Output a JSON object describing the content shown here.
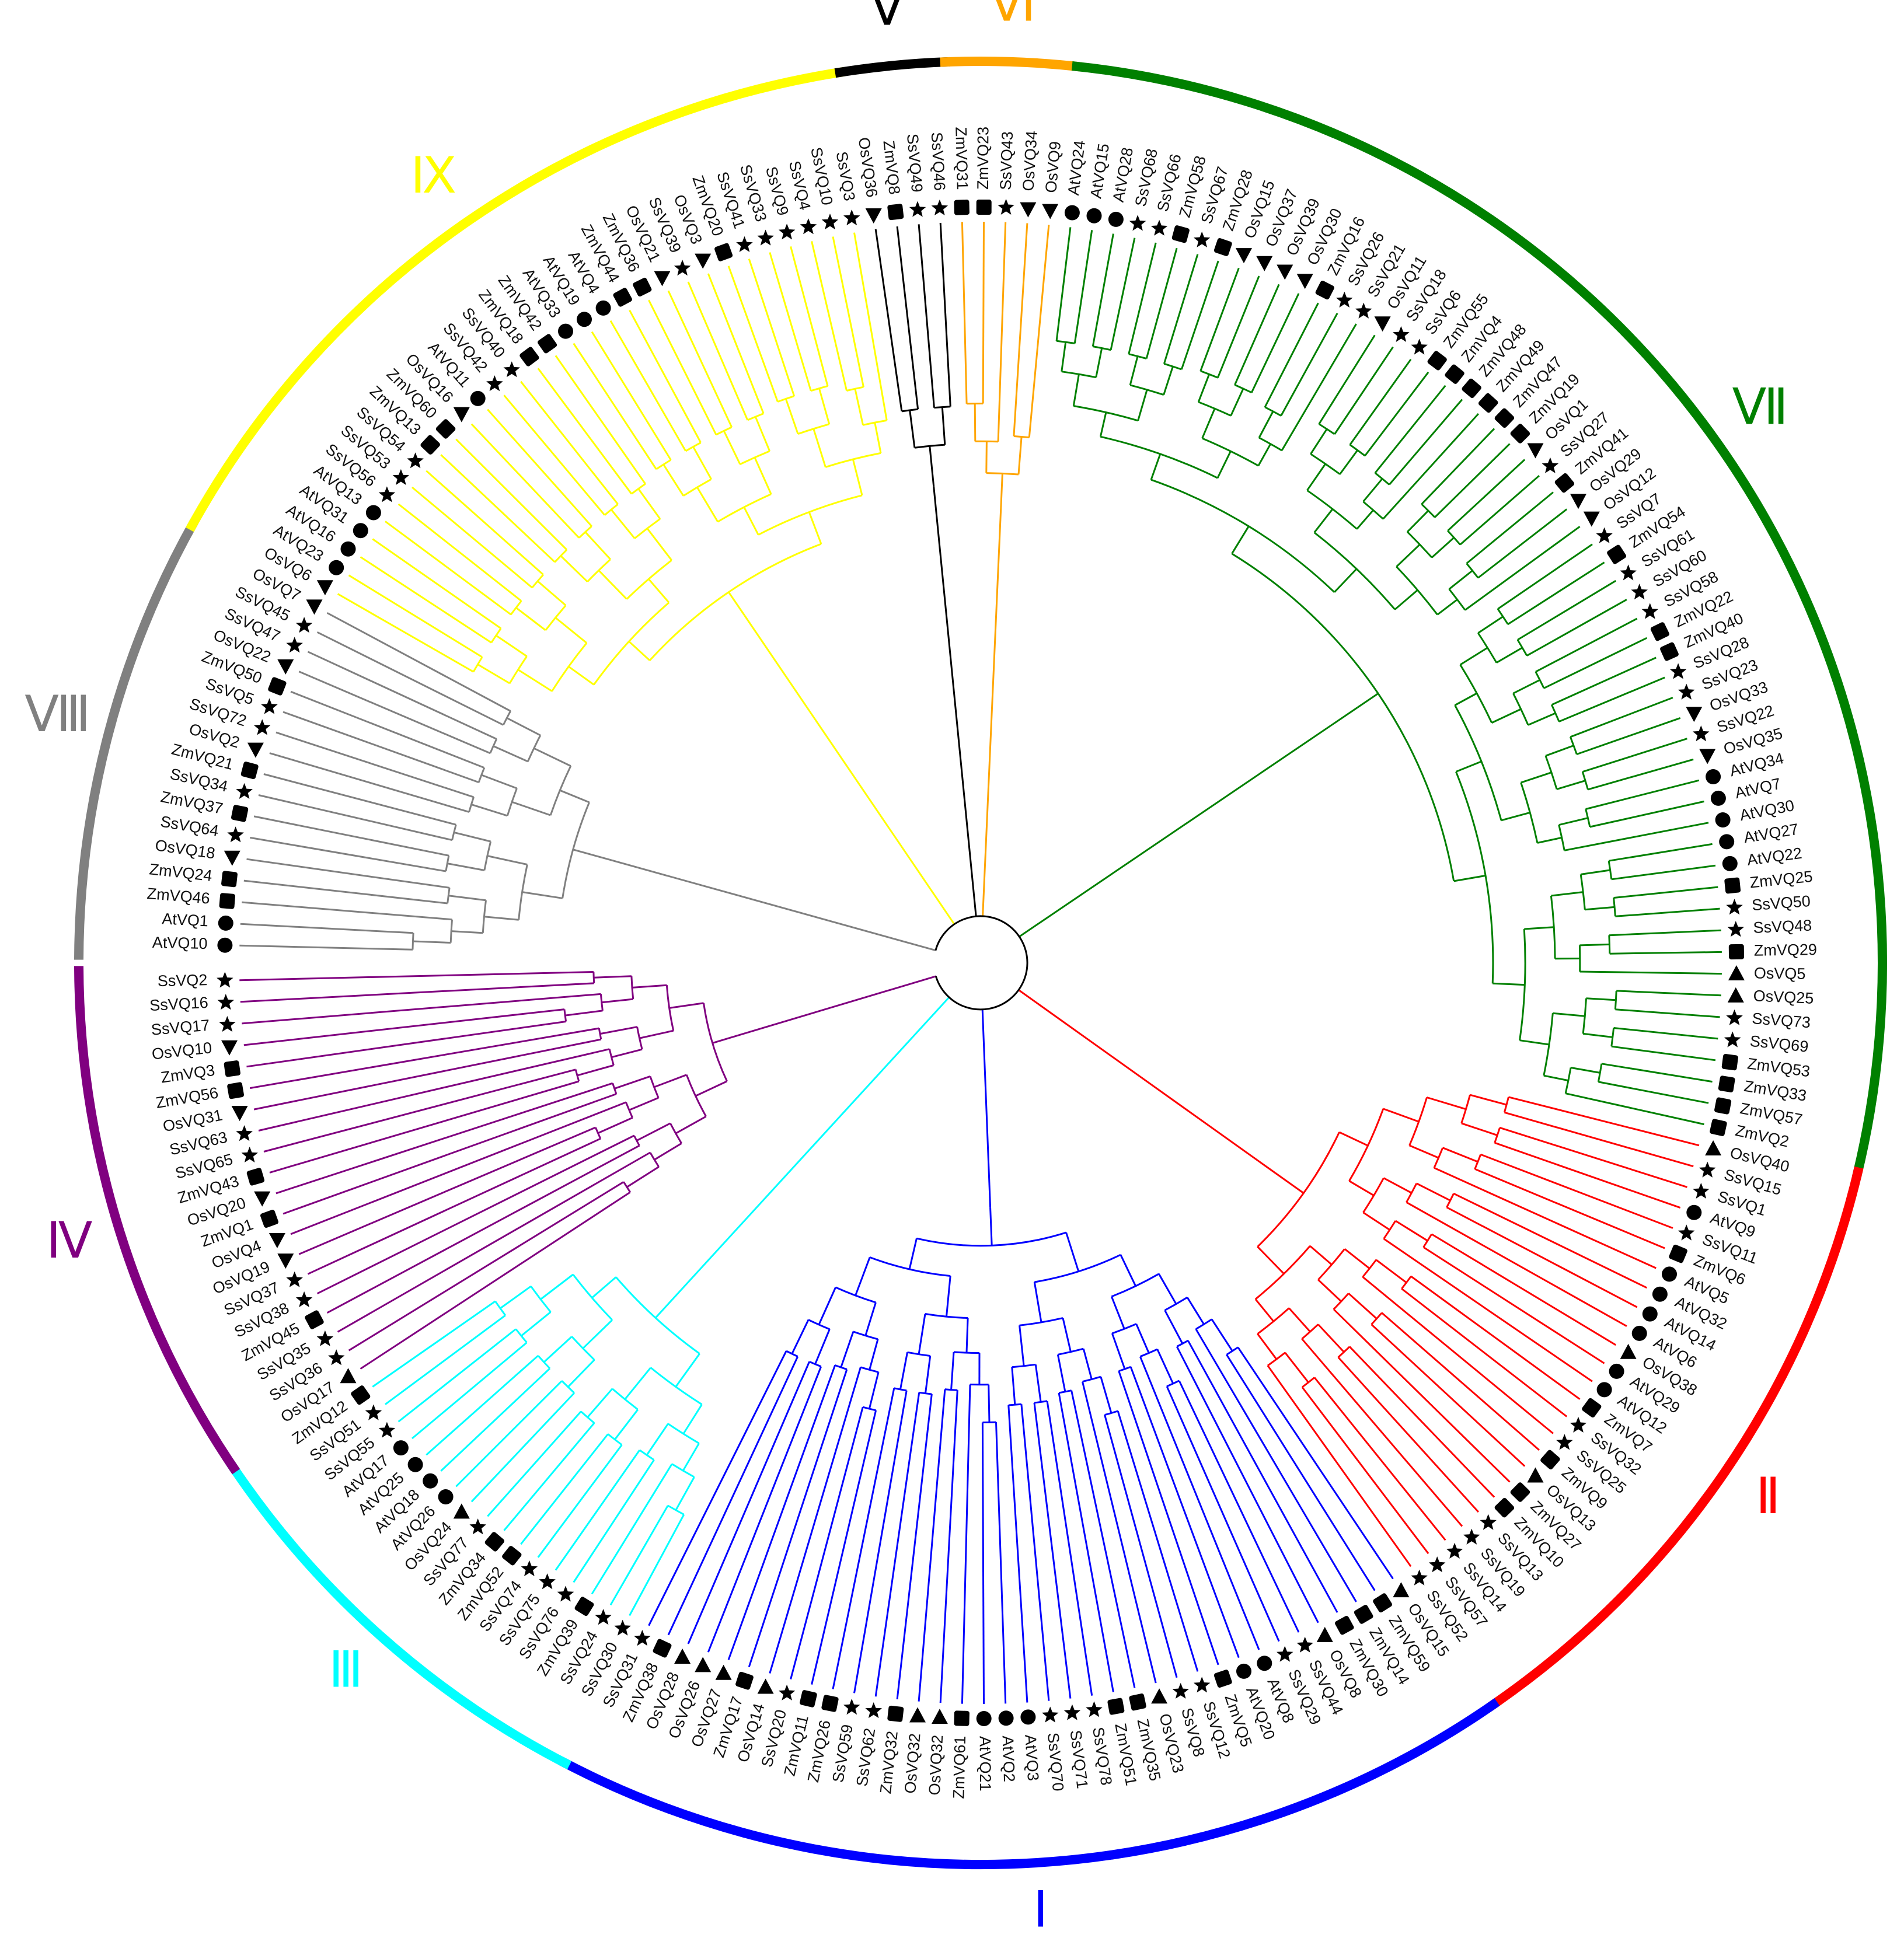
{
  "tree": {
    "leaves": [
      {
        "name": "AtVQ10",
        "shape": "circle"
      },
      {
        "name": "AtVQ1",
        "shape": "circle"
      },
      {
        "name": "ZmVQ46",
        "shape": "square"
      },
      {
        "name": "ZmVQ24",
        "shape": "square"
      },
      {
        "name": "OsVQ18",
        "shape": "triangle-down"
      },
      {
        "name": "SsVQ64",
        "shape": "star"
      },
      {
        "name": "ZmVQ37",
        "shape": "square"
      },
      {
        "name": "SsVQ34",
        "shape": "star"
      },
      {
        "name": "ZmVQ21",
        "shape": "square"
      },
      {
        "name": "OsVQ2",
        "shape": "triangle-down"
      },
      {
        "name": "SsVQ72",
        "shape": "star"
      },
      {
        "name": "SsVQ5",
        "shape": "star"
      },
      {
        "name": "ZmVQ50",
        "shape": "square"
      },
      {
        "name": "OsVQ22",
        "shape": "triangle-down"
      },
      {
        "name": "SsVQ47",
        "shape": "star"
      },
      {
        "name": "SsVQ45",
        "shape": "star"
      },
      {
        "name": "OsVQ7",
        "shape": "triangle-down"
      },
      {
        "name": "OsVQ6",
        "shape": "triangle-down"
      },
      {
        "name": "AtVQ23",
        "shape": "circle"
      },
      {
        "name": "AtVQ16",
        "shape": "circle"
      },
      {
        "name": "AtVQ31",
        "shape": "circle"
      },
      {
        "name": "AtVQ13",
        "shape": "circle"
      },
      {
        "name": "SsVQ56",
        "shape": "star"
      },
      {
        "name": "SsVQ53",
        "shape": "star"
      },
      {
        "name": "SsVQ54",
        "shape": "star"
      },
      {
        "name": "ZmVQ13",
        "shape": "square"
      },
      {
        "name": "ZmVQ60",
        "shape": "square"
      },
      {
        "name": "OsVQ16",
        "shape": "triangle-down"
      },
      {
        "name": "AtVQ11",
        "shape": "circle"
      },
      {
        "name": "SsVQ42",
        "shape": "star"
      },
      {
        "name": "SsVQ40",
        "shape": "star"
      },
      {
        "name": "ZmVQ18",
        "shape": "square"
      },
      {
        "name": "ZmVQ42",
        "shape": "square"
      },
      {
        "name": "AtVQ33",
        "shape": "circle"
      },
      {
        "name": "AtVQ19",
        "shape": "circle"
      },
      {
        "name": "AtVQ4",
        "shape": "circle"
      },
      {
        "name": "ZmVQ44",
        "shape": "square"
      },
      {
        "name": "ZmVQ36",
        "shape": "square"
      },
      {
        "name": "OsVQ21",
        "shape": "triangle-down"
      },
      {
        "name": "SsVQ39",
        "shape": "star"
      },
      {
        "name": "OsVQ3",
        "shape": "triangle-down"
      },
      {
        "name": "ZmVQ20",
        "shape": "square"
      },
      {
        "name": "SsVQ41",
        "shape": "star"
      },
      {
        "name": "SsVQ33",
        "shape": "star"
      },
      {
        "name": "SsVQ9",
        "shape": "star"
      },
      {
        "name": "SsVQ4",
        "shape": "star"
      },
      {
        "name": "SsVQ10",
        "shape": "star"
      },
      {
        "name": "SsVQ3",
        "shape": "star"
      },
      {
        "name": "OsVQ36",
        "shape": "triangle-down"
      },
      {
        "name": "ZmVQ8",
        "shape": "square"
      },
      {
        "name": "SsVQ49",
        "shape": "star"
      },
      {
        "name": "SsVQ46",
        "shape": "star"
      },
      {
        "name": "ZmVQ31",
        "shape": "square"
      },
      {
        "name": "ZmVQ23",
        "shape": "square"
      },
      {
        "name": "SsVQ43",
        "shape": "star"
      },
      {
        "name": "OsVQ34",
        "shape": "triangle-down"
      },
      {
        "name": "OsVQ9",
        "shape": "triangle-down"
      },
      {
        "name": "AtVQ24",
        "shape": "circle"
      },
      {
        "name": "AtVQ15",
        "shape": "circle"
      },
      {
        "name": "AtVQ28",
        "shape": "circle"
      },
      {
        "name": "SsVQ68",
        "shape": "star"
      },
      {
        "name": "SsVQ66",
        "shape": "star"
      },
      {
        "name": "ZmVQ58",
        "shape": "square"
      },
      {
        "name": "SsVQ67",
        "shape": "star"
      },
      {
        "name": "ZmVQ28",
        "shape": "square"
      },
      {
        "name": "OsVQ15",
        "shape": "triangle-down"
      },
      {
        "name": "OsVQ37",
        "shape": "triangle-down"
      },
      {
        "name": "OsVQ39",
        "shape": "triangle-down"
      },
      {
        "name": "OsVQ30",
        "shape": "triangle-down"
      },
      {
        "name": "ZmVQ16",
        "shape": "square"
      },
      {
        "name": "SsVQ26",
        "shape": "star"
      },
      {
        "name": "SsVQ21",
        "shape": "star"
      },
      {
        "name": "OsVQ11",
        "shape": "triangle-down"
      },
      {
        "name": "SsVQ18",
        "shape": "star"
      },
      {
        "name": "SsVQ6",
        "shape": "star"
      },
      {
        "name": "ZmVQ55",
        "shape": "square"
      },
      {
        "name": "ZmVQ4",
        "shape": "square"
      },
      {
        "name": "ZmVQ48",
        "shape": "square"
      },
      {
        "name": "ZmVQ49",
        "shape": "square"
      },
      {
        "name": "ZmVQ47",
        "shape": "square"
      },
      {
        "name": "ZmVQ19",
        "shape": "square"
      },
      {
        "name": "OsVQ1",
        "shape": "triangle-down"
      },
      {
        "name": "SsVQ27",
        "shape": "star"
      },
      {
        "name": "ZmVQ41",
        "shape": "square"
      },
      {
        "name": "OsVQ29",
        "shape": "triangle-down"
      },
      {
        "name": "OsVQ12",
        "shape": "triangle-down"
      },
      {
        "name": "SsVQ7",
        "shape": "star"
      },
      {
        "name": "ZmVQ54",
        "shape": "square"
      },
      {
        "name": "SsVQ61",
        "shape": "star"
      },
      {
        "name": "SsVQ60",
        "shape": "star"
      },
      {
        "name": "SsVQ58",
        "shape": "star"
      },
      {
        "name": "ZmVQ22",
        "shape": "square"
      },
      {
        "name": "ZmVQ40",
        "shape": "square"
      },
      {
        "name": "SsVQ28",
        "shape": "star"
      },
      {
        "name": "SsVQ23",
        "shape": "star"
      },
      {
        "name": "OsVQ33",
        "shape": "triangle-down"
      },
      {
        "name": "SsVQ22",
        "shape": "star"
      },
      {
        "name": "OsVQ35",
        "shape": "triangle-down"
      },
      {
        "name": "AtVQ34",
        "shape": "circle"
      },
      {
        "name": "AtVQ7",
        "shape": "circle"
      },
      {
        "name": "AtVQ30",
        "shape": "circle"
      },
      {
        "name": "AtVQ27",
        "shape": "circle"
      },
      {
        "name": "AtVQ22",
        "shape": "circle"
      },
      {
        "name": "ZmVQ25",
        "shape": "square"
      },
      {
        "name": "SsVQ50",
        "shape": "star"
      },
      {
        "name": "SsVQ48",
        "shape": "star"
      },
      {
        "name": "ZmVQ29",
        "shape": "square"
      },
      {
        "name": "OsVQ5",
        "shape": "triangle-up"
      },
      {
        "name": "OsVQ25",
        "shape": "triangle-up"
      },
      {
        "name": "SsVQ73",
        "shape": "star"
      },
      {
        "name": "SsVQ69",
        "shape": "star"
      },
      {
        "name": "ZmVQ53",
        "shape": "square"
      },
      {
        "name": "ZmVQ33",
        "shape": "square"
      },
      {
        "name": "ZmVQ57",
        "shape": "square"
      },
      {
        "name": "ZmVQ2",
        "shape": "square"
      },
      {
        "name": "OsVQ40",
        "shape": "triangle-up"
      },
      {
        "name": "SsVQ15",
        "shape": "star"
      },
      {
        "name": "SsVQ1",
        "shape": "star"
      },
      {
        "name": "AtVQ9",
        "shape": "circle"
      },
      {
        "name": "SsVQ11",
        "shape": "star"
      },
      {
        "name": "ZmVQ6",
        "shape": "square"
      },
      {
        "name": "AtVQ5",
        "shape": "circle"
      },
      {
        "name": "AtVQ32",
        "shape": "circle"
      },
      {
        "name": "AtVQ14",
        "shape": "circle"
      },
      {
        "name": "AtVQ6",
        "shape": "circle"
      },
      {
        "name": "OsVQ38",
        "shape": "triangle-up"
      },
      {
        "name": "AtVQ29",
        "shape": "circle"
      },
      {
        "name": "AtVQ12",
        "shape": "circle"
      },
      {
        "name": "ZmVQ7",
        "shape": "square"
      },
      {
        "name": "SsVQ32",
        "shape": "star"
      },
      {
        "name": "SsVQ25",
        "shape": "star"
      },
      {
        "name": "ZmVQ9",
        "shape": "square"
      },
      {
        "name": "OsVQ13",
        "shape": "triangle-up"
      },
      {
        "name": "ZmVQ27",
        "shape": "square"
      },
      {
        "name": "ZmVQ10",
        "shape": "square"
      },
      {
        "name": "SsVQ13",
        "shape": "star"
      },
      {
        "name": "SsVQ19",
        "shape": "star"
      },
      {
        "name": "SsVQ14",
        "shape": "star"
      },
      {
        "name": "SsVQ57",
        "shape": "star"
      },
      {
        "name": "SsVQ52",
        "shape": "star"
      },
      {
        "name": "OsVQ15",
        "shape": "triangle-up"
      },
      {
        "name": "ZmVQ59",
        "shape": "square"
      },
      {
        "name": "ZmVQ14",
        "shape": "square"
      },
      {
        "name": "ZmVQ30",
        "shape": "square"
      },
      {
        "name": "OsVQ8",
        "shape": "triangle-up"
      },
      {
        "name": "SsVQ44",
        "shape": "star"
      },
      {
        "name": "SsVQ29",
        "shape": "star"
      },
      {
        "name": "AtVQ8",
        "shape": "circle"
      },
      {
        "name": "AtVQ20",
        "shape": "circle"
      },
      {
        "name": "ZmVQ5",
        "shape": "square"
      },
      {
        "name": "SsVQ12",
        "shape": "star"
      },
      {
        "name": "SsVQ8",
        "shape": "star"
      },
      {
        "name": "OsVQ23",
        "shape": "triangle-up"
      },
      {
        "name": "ZmVQ35",
        "shape": "square"
      },
      {
        "name": "ZmVQ51",
        "shape": "square"
      },
      {
        "name": "SsVQ78",
        "shape": "star"
      },
      {
        "name": "SsVQ71",
        "shape": "star"
      },
      {
        "name": "SsVQ70",
        "shape": "star"
      },
      {
        "name": "AtVQ3",
        "shape": "circle"
      },
      {
        "name": "AtVQ2",
        "shape": "circle"
      },
      {
        "name": "AtVQ21",
        "shape": "circle"
      },
      {
        "name": "ZmVQ61",
        "shape": "square"
      },
      {
        "name": "OsVQ32",
        "shape": "triangle-up"
      },
      {
        "name": "OsVQ32",
        "shape": "triangle-up"
      },
      {
        "name": "ZmVQ32",
        "shape": "square"
      },
      {
        "name": "SsVQ62",
        "shape": "star"
      },
      {
        "name": "SsVQ59",
        "shape": "star"
      },
      {
        "name": "ZmVQ26",
        "shape": "square"
      },
      {
        "name": "ZmVQ11",
        "shape": "square"
      },
      {
        "name": "SsVQ20",
        "shape": "star"
      },
      {
        "name": "OsVQ14",
        "shape": "triangle-up"
      },
      {
        "name": "ZmVQ17",
        "shape": "square"
      },
      {
        "name": "OsVQ27",
        "shape": "triangle-up"
      },
      {
        "name": "OsVQ26",
        "shape": "triangle-up"
      },
      {
        "name": "OsVQ28",
        "shape": "triangle-up"
      },
      {
        "name": "ZmVQ38",
        "shape": "square"
      },
      {
        "name": "SsVQ31",
        "shape": "star"
      },
      {
        "name": "SsVQ30",
        "shape": "star"
      },
      {
        "name": "SsVQ24",
        "shape": "star"
      },
      {
        "name": "ZmVQ39",
        "shape": "square"
      },
      {
        "name": "SsVQ76",
        "shape": "star"
      },
      {
        "name": "SsVQ75",
        "shape": "star"
      },
      {
        "name": "SsVQ74",
        "shape": "star"
      },
      {
        "name": "ZmVQ52",
        "shape": "square"
      },
      {
        "name": "ZmVQ34",
        "shape": "square"
      },
      {
        "name": "SsVQ77",
        "shape": "star"
      },
      {
        "name": "OsVQ24",
        "shape": "triangle-up"
      },
      {
        "name": "AtVQ26",
        "shape": "circle"
      },
      {
        "name": "AtVQ18",
        "shape": "circle"
      },
      {
        "name": "AtVQ25",
        "shape": "circle"
      },
      {
        "name": "AtVQ17",
        "shape": "circle"
      },
      {
        "name": "SsVQ55",
        "shape": "star"
      },
      {
        "name": "SsVQ51",
        "shape": "star"
      },
      {
        "name": "ZmVQ12",
        "shape": "square"
      },
      {
        "name": "OsVQ17",
        "shape": "triangle-up"
      },
      {
        "name": "SsVQ36",
        "shape": "star"
      },
      {
        "name": "SsVQ35",
        "shape": "star"
      },
      {
        "name": "ZmVQ45",
        "shape": "square"
      },
      {
        "name": "SsVQ38",
        "shape": "star"
      },
      {
        "name": "SsVQ37",
        "shape": "star"
      },
      {
        "name": "OsVQ19",
        "shape": "triangle-down"
      },
      {
        "name": "OsVQ4",
        "shape": "triangle-down"
      },
      {
        "name": "ZmVQ1",
        "shape": "square"
      },
      {
        "name": "OsVQ20",
        "shape": "triangle-down"
      },
      {
        "name": "ZmVQ43",
        "shape": "square"
      },
      {
        "name": "SsVQ65",
        "shape": "star"
      },
      {
        "name": "SsVQ63",
        "shape": "star"
      },
      {
        "name": "OsVQ31",
        "shape": "triangle-down"
      },
      {
        "name": "ZmVQ56",
        "shape": "square"
      },
      {
        "name": "ZmVQ3",
        "shape": "square"
      },
      {
        "name": "OsVQ10",
        "shape": "triangle-down"
      },
      {
        "name": "SsVQ17",
        "shape": "star"
      },
      {
        "name": "SsVQ16",
        "shape": "star"
      },
      {
        "name": "SsVQ2",
        "shape": "star"
      }
    ],
    "clades": [
      {
        "label": "Ⅷ",
        "color": "#808080",
        "count": 17
      },
      {
        "label": "Ⅸ",
        "color": "#ffff00",
        "count": 31
      },
      {
        "label": "Ⅴ",
        "color": "#000000",
        "count": 4
      },
      {
        "label": "Ⅵ",
        "color": "#ffa500",
        "count": 5
      },
      {
        "label": "Ⅶ",
        "color": "#008000",
        "count": 58
      },
      {
        "label": "Ⅱ",
        "color": "#ff0000",
        "count": 25
      },
      {
        "label": "Ⅰ",
        "color": "#0000ff",
        "count": 37
      },
      {
        "label": "Ⅲ",
        "color": "#00ffff",
        "count": 17
      },
      {
        "label": "Ⅳ",
        "color": "#800080",
        "count": 20
      }
    ]
  }
}
